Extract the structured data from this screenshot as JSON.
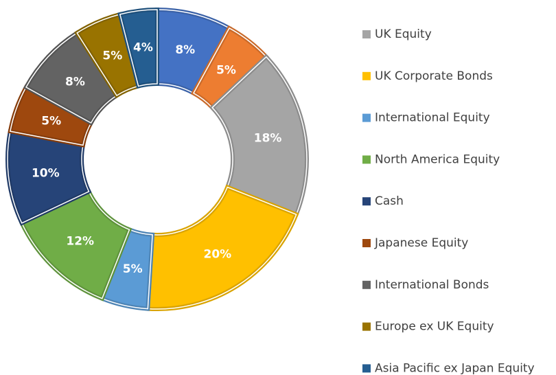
{
  "chart_data": {
    "type": "donut",
    "categories": [
      null,
      null,
      "UK Equity",
      "UK Corporate Bonds",
      "International Equity",
      "North America Equity",
      "Cash",
      "Japanese Equity",
      "International Bonds",
      "Europe ex UK Equity",
      "Asia Pacific ex Japan Equity"
    ],
    "values": [
      8,
      5,
      18,
      20,
      5,
      12,
      10,
      5,
      8,
      5,
      4
    ],
    "value_labels": [
      "8%",
      "5%",
      "18%",
      "20%",
      "5%",
      "12%",
      "10%",
      "5%",
      "8%",
      "5%",
      "4%"
    ],
    "colors": [
      "#4472c4",
      "#ed7d31",
      "#a5a5a5",
      "#ffc000",
      "#5b9bd5",
      "#70ad47",
      "#264478",
      "#9e480e",
      "#636363",
      "#997300",
      "#255e91"
    ],
    "legend": "right"
  }
}
